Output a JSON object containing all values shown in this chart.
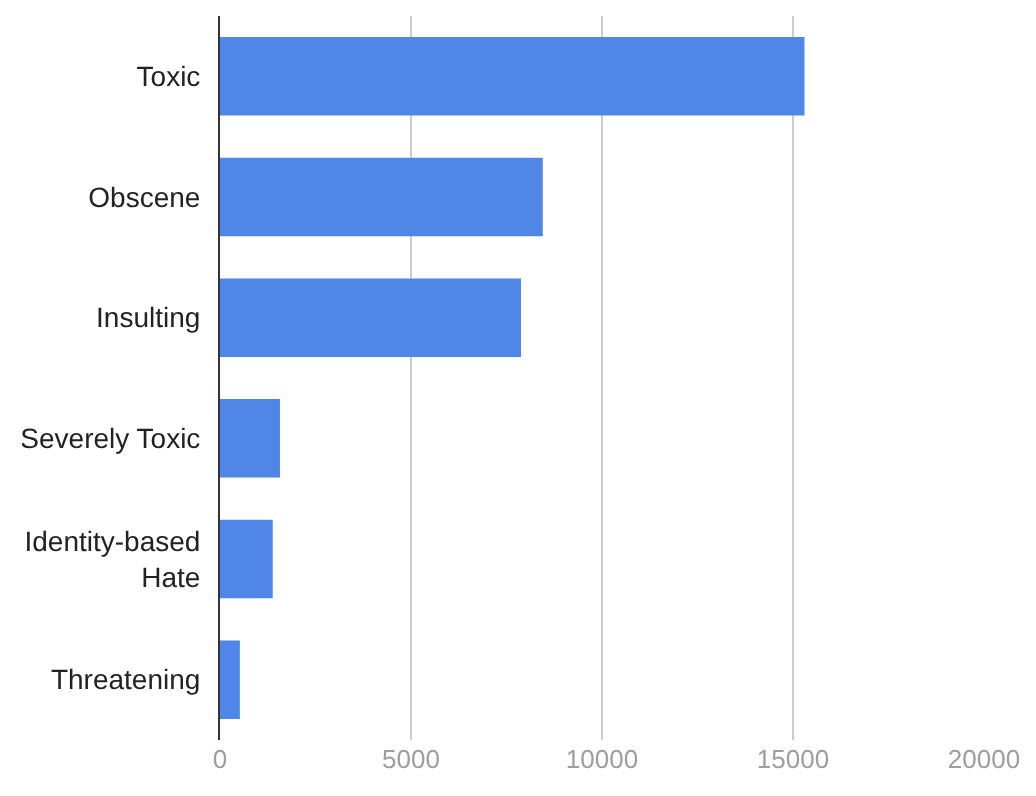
{
  "chart_data": {
    "type": "bar",
    "orientation": "horizontal",
    "categories": [
      "Toxic",
      "Obscene",
      "Insulting",
      "Severely Toxic",
      "Identity-based Hate",
      "Threatening"
    ],
    "values": [
      15300,
      8450,
      7880,
      1570,
      1380,
      520
    ],
    "color": "#4f86e8",
    "xlim": [
      0,
      20000
    ],
    "xticks": [
      0,
      5000,
      10000,
      15000,
      20000
    ],
    "grid": "x"
  }
}
